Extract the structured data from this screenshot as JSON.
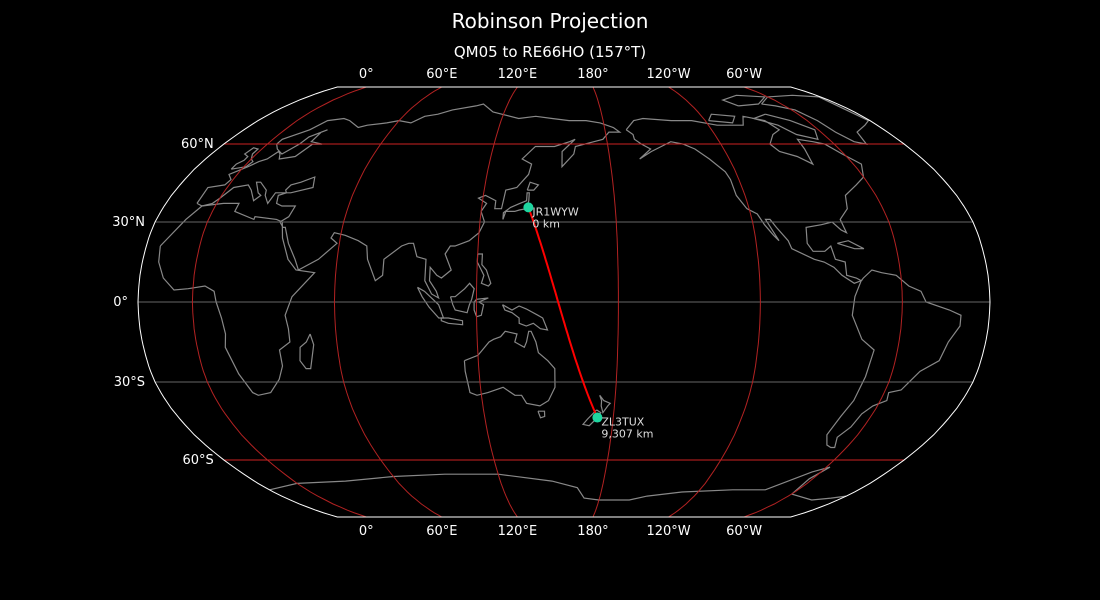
{
  "figure": {
    "title": "Robinson Projection",
    "subtitle": "QM05 to RE66HO (157°T)"
  },
  "map": {
    "projection": "robinson",
    "central_longitude": 157,
    "background_color": "#000000",
    "coastline_color": "#888888",
    "outline_color": "#ffffff",
    "meridians": [
      0,
      60,
      120,
      180,
      -120,
      -60
    ],
    "meridian_labels": [
      "0°",
      "60°E",
      "120°E",
      "180°",
      "120°W",
      "60°W"
    ],
    "meridian_color": "#b22222",
    "parallels": [
      {
        "lat": 60,
        "label": "60°N",
        "color": "#cc2222"
      },
      {
        "lat": 30,
        "label": "30°N",
        "color": "#666666"
      },
      {
        "lat": 0,
        "label": "0°",
        "color": "#666666"
      },
      {
        "lat": -30,
        "label": "30°S",
        "color": "#666666"
      },
      {
        "lat": -60,
        "label": "60°S",
        "color": "#cc2222"
      }
    ],
    "path_color": "#ff0000",
    "marker_color": "#1fd6a0",
    "stations": [
      {
        "call": "JR1WYW",
        "grid": "QM05",
        "lat": 35.5,
        "lon": 141.0,
        "distance": "0 km"
      },
      {
        "call": "ZL3TUX",
        "grid": "RE66HO",
        "lat": -43.4,
        "lon": 172.6,
        "distance": "9,307 km"
      }
    ]
  }
}
